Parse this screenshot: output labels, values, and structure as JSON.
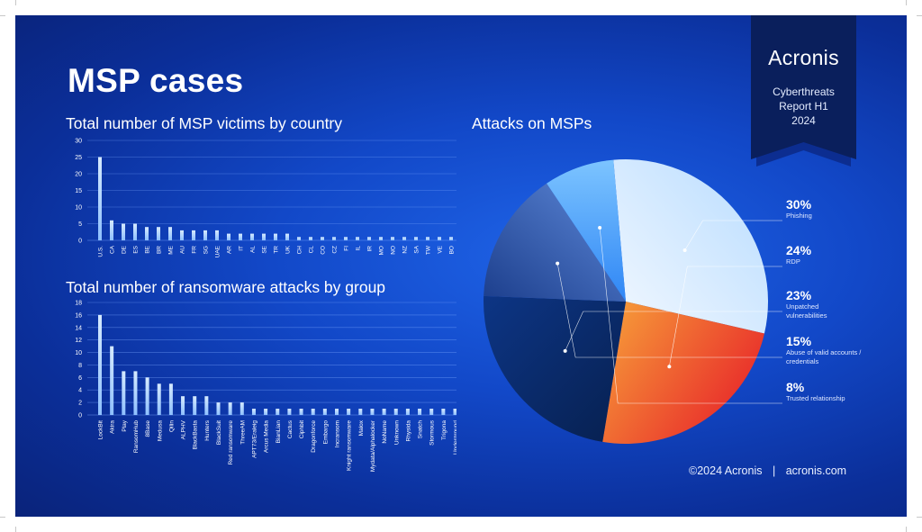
{
  "page": {
    "title": "MSP cases",
    "brand": "Acronis",
    "report_lines": [
      "Cyberthreats",
      "Report H1",
      "2024"
    ],
    "footer_copyright": "©2024 Acronis",
    "footer_separator": "|",
    "footer_site": "acronis.com"
  },
  "colors": {
    "background": "#1248c8",
    "bar": "#8ec0ff",
    "pie_phishing": "#f4522c",
    "pie_rdp": "#0b2a6e",
    "pie_unpatched": "#3a68c0",
    "pie_abuse": "#55a6ff",
    "pie_trusted": "#dcecff"
  },
  "chart_data": [
    {
      "type": "bar",
      "title": "Total number of MSP victims by country",
      "categories": [
        "U.S.",
        "CA",
        "DE",
        "ES",
        "BE",
        "BR",
        "ME",
        "AU",
        "FR",
        "SG",
        "UAE",
        "AR",
        "IT",
        "AL",
        "SE",
        "TR",
        "UK",
        "CH",
        "CL",
        "CO",
        "CZ",
        "FI",
        "IL",
        "IR",
        "MO",
        "NO",
        "NZ",
        "SA",
        "TW",
        "VE",
        "BO",
        "MC"
      ],
      "values": [
        25,
        6,
        5,
        5,
        4,
        4,
        4,
        3,
        3,
        3,
        3,
        2,
        2,
        2,
        2,
        2,
        2,
        1,
        1,
        1,
        1,
        1,
        1,
        1,
        1,
        1,
        1,
        1,
        1,
        1,
        1,
        1
      ],
      "ylim": [
        0,
        30
      ],
      "yticks": [
        0,
        5,
        10,
        15,
        20,
        25,
        30
      ],
      "grid": true
    },
    {
      "type": "bar",
      "title": "Total number of ransomware attacks by group",
      "categories": [
        "LockBit",
        "Akira",
        "Play",
        "RansomHub",
        "8Base",
        "Medusa",
        "Qilin",
        "ALPHV",
        "BlackBasta",
        "Hunters",
        "BlackSuit",
        "Red ransomware",
        "ThreeAM",
        "APT73/Eraleig",
        "Arcus Media",
        "BianLian",
        "Cactus",
        "Ciphbit",
        "Dragonforce",
        "Embargo",
        "Incransom",
        "Knight ransomware",
        "Malox",
        "Mydata/Alphalocker",
        "NoName",
        "Unknown",
        "Rhysida",
        "Snatch",
        "Stormous",
        "Trigona",
        "Underground"
      ],
      "values": [
        16,
        11,
        7,
        7,
        6,
        5,
        5,
        3,
        3,
        3,
        2,
        2,
        2,
        1,
        1,
        1,
        1,
        1,
        1,
        1,
        1,
        1,
        1,
        1,
        1,
        1,
        1,
        1,
        1,
        1,
        1
      ],
      "ylim": [
        0,
        18
      ],
      "yticks": [
        0,
        2,
        4,
        6,
        8,
        10,
        12,
        14,
        16,
        18
      ],
      "grid": true
    },
    {
      "type": "pie",
      "title": "Attacks on MSPs",
      "slices": [
        {
          "label": "Phishing",
          "value": 30,
          "display": "30%"
        },
        {
          "label": "RDP",
          "value": 24,
          "display": "24%"
        },
        {
          "label": "Unpatched vulnerabilities",
          "value": 23,
          "display": "23%"
        },
        {
          "label": "Abuse of valid accounts / credentials",
          "value": 15,
          "display": "15%"
        },
        {
          "label": "Trusted relationship",
          "value": 8,
          "display": "8%"
        }
      ]
    }
  ]
}
